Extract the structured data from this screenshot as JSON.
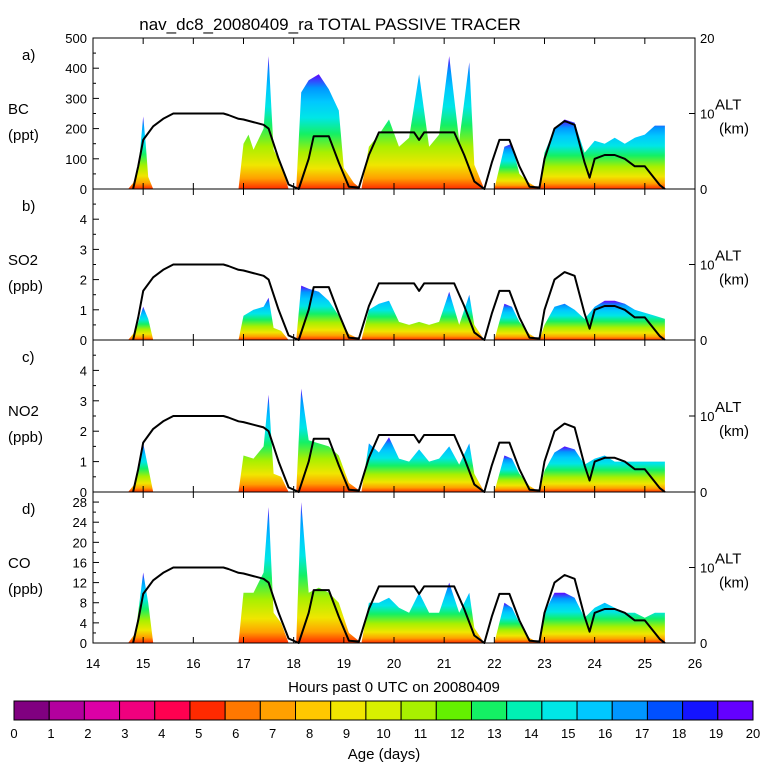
{
  "chart_data": {
    "type": "area",
    "title": "nav_dc8_20080409_ra TOTAL PASSIVE TRACER",
    "xlabel": "Hours past 0 UTC on 20080409",
    "xlim": [
      14,
      26
    ],
    "xticks": [
      "14",
      "15",
      "16",
      "17",
      "18",
      "19",
      "20",
      "21",
      "22",
      "23",
      "24",
      "25",
      "26"
    ],
    "altitude_axis": {
      "label": "ALT",
      "unit": "(km)",
      "range": [
        0,
        20
      ],
      "ticks": [
        "0",
        "10",
        "20"
      ]
    },
    "altitude_profile": [
      [
        14.8,
        0
      ],
      [
        14.9,
        3
      ],
      [
        15.0,
        6.5
      ],
      [
        15.2,
        8.3
      ],
      [
        15.4,
        9.3
      ],
      [
        15.6,
        10.0
      ],
      [
        16.6,
        10.0
      ],
      [
        16.7,
        9.8
      ],
      [
        16.9,
        9.3
      ],
      [
        17.0,
        9.2
      ],
      [
        17.4,
        8.5
      ],
      [
        17.5,
        8.0
      ],
      [
        17.7,
        4.0
      ],
      [
        17.9,
        0.6
      ],
      [
        18.1,
        0
      ],
      [
        18.3,
        4.0
      ],
      [
        18.4,
        7.0
      ],
      [
        18.7,
        7.0
      ],
      [
        18.9,
        3.5
      ],
      [
        19.1,
        0.3
      ],
      [
        19.3,
        0.2
      ],
      [
        19.5,
        4.5
      ],
      [
        19.7,
        7.5
      ],
      [
        20.4,
        7.5
      ],
      [
        20.5,
        6.5
      ],
      [
        20.6,
        7.5
      ],
      [
        21.2,
        7.5
      ],
      [
        21.4,
        4.5
      ],
      [
        21.6,
        1.0
      ],
      [
        21.8,
        0
      ],
      [
        21.95,
        3.5
      ],
      [
        22.1,
        6.5
      ],
      [
        22.3,
        6.5
      ],
      [
        22.5,
        3.0
      ],
      [
        22.7,
        0.3
      ],
      [
        22.9,
        0.2
      ],
      [
        23.0,
        4.0
      ],
      [
        23.2,
        8.0
      ],
      [
        23.4,
        9.0
      ],
      [
        23.6,
        8.5
      ],
      [
        23.8,
        3.5
      ],
      [
        23.9,
        1.5
      ],
      [
        24.0,
        4.0
      ],
      [
        24.2,
        4.5
      ],
      [
        24.4,
        4.5
      ],
      [
        24.6,
        4.0
      ],
      [
        24.8,
        3.0
      ],
      [
        25.0,
        3.0
      ],
      [
        25.3,
        0.5
      ],
      [
        25.4,
        0
      ]
    ],
    "panels": [
      {
        "letter": "a)",
        "species": "BC",
        "unit": "(ppt)",
        "ylim": [
          0,
          500
        ],
        "yticks": [
          "0",
          "100",
          "200",
          "300",
          "400",
          "500"
        ],
        "values": [
          [
            14.7,
            0
          ],
          [
            14.8,
            20
          ],
          [
            14.9,
            60
          ],
          [
            15.0,
            240
          ],
          [
            15.05,
            150
          ],
          [
            15.1,
            40
          ],
          [
            15.2,
            0
          ],
          [
            16.9,
            0
          ],
          [
            17.0,
            150
          ],
          [
            17.1,
            180
          ],
          [
            17.2,
            130
          ],
          [
            17.4,
            200
          ],
          [
            17.5,
            440
          ],
          [
            17.6,
            130
          ],
          [
            17.75,
            80
          ],
          [
            17.9,
            0
          ],
          [
            18.05,
            0
          ],
          [
            18.15,
            320
          ],
          [
            18.3,
            360
          ],
          [
            18.5,
            380
          ],
          [
            18.7,
            330
          ],
          [
            18.9,
            260
          ],
          [
            19.0,
            70
          ],
          [
            19.2,
            20
          ],
          [
            19.35,
            0
          ],
          [
            19.5,
            140
          ],
          [
            19.7,
            180
          ],
          [
            19.9,
            230
          ],
          [
            20.1,
            140
          ],
          [
            20.3,
            170
          ],
          [
            20.5,
            380
          ],
          [
            20.7,
            140
          ],
          [
            20.9,
            180
          ],
          [
            21.1,
            440
          ],
          [
            21.3,
            160
          ],
          [
            21.5,
            420
          ],
          [
            21.6,
            80
          ],
          [
            21.8,
            0
          ],
          [
            22.0,
            0
          ],
          [
            22.2,
            140
          ],
          [
            22.35,
            150
          ],
          [
            22.5,
            50
          ],
          [
            22.7,
            20
          ],
          [
            22.9,
            0
          ],
          [
            23.0,
            120
          ],
          [
            23.2,
            200
          ],
          [
            23.4,
            230
          ],
          [
            23.6,
            220
          ],
          [
            23.8,
            120
          ],
          [
            24.0,
            160
          ],
          [
            24.2,
            150
          ],
          [
            24.4,
            170
          ],
          [
            24.6,
            150
          ],
          [
            24.8,
            170
          ],
          [
            25.0,
            180
          ],
          [
            25.2,
            210
          ],
          [
            25.4,
            210
          ]
        ]
      },
      {
        "letter": "b)",
        "species": "SO2",
        "unit": "(ppb)",
        "ylim": [
          0,
          5
        ],
        "yticks": [
          "0",
          "1",
          "2",
          "3",
          "4"
        ],
        "values": [
          [
            14.7,
            0
          ],
          [
            14.85,
            0.3
          ],
          [
            15.0,
            1.1
          ],
          [
            15.1,
            0.7
          ],
          [
            15.2,
            0
          ],
          [
            16.9,
            0
          ],
          [
            17.0,
            0.8
          ],
          [
            17.2,
            1.0
          ],
          [
            17.4,
            1.1
          ],
          [
            17.5,
            1.4
          ],
          [
            17.6,
            0.4
          ],
          [
            17.75,
            0.3
          ],
          [
            17.9,
            0
          ],
          [
            18.05,
            0
          ],
          [
            18.15,
            1.8
          ],
          [
            18.3,
            1.7
          ],
          [
            18.5,
            1.6
          ],
          [
            18.7,
            1.3
          ],
          [
            18.9,
            0.8
          ],
          [
            19.1,
            0.2
          ],
          [
            19.35,
            0
          ],
          [
            19.5,
            1.0
          ],
          [
            19.7,
            1.2
          ],
          [
            19.9,
            1.3
          ],
          [
            20.1,
            0.6
          ],
          [
            20.3,
            0.5
          ],
          [
            20.5,
            0.6
          ],
          [
            20.7,
            0.5
          ],
          [
            20.9,
            0.6
          ],
          [
            21.1,
            1.6
          ],
          [
            21.3,
            0.5
          ],
          [
            21.5,
            1.5
          ],
          [
            21.6,
            0.5
          ],
          [
            21.8,
            0
          ],
          [
            22.0,
            0
          ],
          [
            22.2,
            1.2
          ],
          [
            22.35,
            1.1
          ],
          [
            22.5,
            0.6
          ],
          [
            22.7,
            0.2
          ],
          [
            22.9,
            0
          ],
          [
            23.0,
            0.5
          ],
          [
            23.2,
            1.1
          ],
          [
            23.4,
            1.2
          ],
          [
            23.6,
            1.0
          ],
          [
            23.8,
            0.7
          ],
          [
            24.0,
            1.1
          ],
          [
            24.2,
            1.3
          ],
          [
            24.4,
            1.3
          ],
          [
            24.6,
            1.2
          ],
          [
            24.8,
            1.0
          ],
          [
            25.0,
            0.9
          ],
          [
            25.2,
            0.8
          ],
          [
            25.4,
            0.7
          ]
        ]
      },
      {
        "letter": "c)",
        "species": "NO2",
        "unit": "(ppb)",
        "ylim": [
          0,
          5
        ],
        "yticks": [
          "0",
          "1",
          "2",
          "3",
          "4"
        ],
        "values": [
          [
            14.7,
            0
          ],
          [
            14.85,
            0.3
          ],
          [
            15.0,
            1.6
          ],
          [
            15.1,
            0.8
          ],
          [
            15.2,
            0
          ],
          [
            16.9,
            0
          ],
          [
            17.0,
            1.2
          ],
          [
            17.2,
            1.1
          ],
          [
            17.4,
            1.5
          ],
          [
            17.5,
            3.2
          ],
          [
            17.6,
            0.6
          ],
          [
            17.75,
            0.5
          ],
          [
            17.9,
            0
          ],
          [
            18.05,
            0
          ],
          [
            18.15,
            3.4
          ],
          [
            18.3,
            1.7
          ],
          [
            18.5,
            1.6
          ],
          [
            18.7,
            1.5
          ],
          [
            18.9,
            1.2
          ],
          [
            19.1,
            0.3
          ],
          [
            19.35,
            0
          ],
          [
            19.5,
            1.6
          ],
          [
            19.7,
            1.3
          ],
          [
            19.9,
            1.8
          ],
          [
            20.1,
            1.1
          ],
          [
            20.3,
            1.0
          ],
          [
            20.5,
            1.4
          ],
          [
            20.7,
            1.0
          ],
          [
            20.9,
            1.1
          ],
          [
            21.1,
            1.5
          ],
          [
            21.3,
            0.9
          ],
          [
            21.5,
            1.6
          ],
          [
            21.6,
            0.6
          ],
          [
            21.8,
            0
          ],
          [
            22.0,
            0
          ],
          [
            22.2,
            1.2
          ],
          [
            22.35,
            1.1
          ],
          [
            22.5,
            0.6
          ],
          [
            22.7,
            0.2
          ],
          [
            22.9,
            0
          ],
          [
            23.0,
            0.7
          ],
          [
            23.2,
            1.3
          ],
          [
            23.4,
            1.5
          ],
          [
            23.6,
            1.4
          ],
          [
            23.8,
            0.9
          ],
          [
            24.0,
            1.1
          ],
          [
            24.2,
            1.2
          ],
          [
            24.4,
            1.0
          ],
          [
            24.6,
            1.0
          ],
          [
            24.8,
            1.0
          ],
          [
            25.0,
            1.0
          ],
          [
            25.2,
            1.0
          ],
          [
            25.4,
            1.0
          ]
        ]
      },
      {
        "letter": "d)",
        "species": "CO",
        "unit": "(ppb)",
        "ylim": [
          0,
          30
        ],
        "yticks": [
          "0",
          "4",
          "8",
          "12",
          "16",
          "20",
          "24",
          "28"
        ],
        "values": [
          [
            14.7,
            0
          ],
          [
            14.85,
            2
          ],
          [
            15.0,
            14
          ],
          [
            15.1,
            8
          ],
          [
            15.2,
            0
          ],
          [
            16.9,
            0
          ],
          [
            17.0,
            10
          ],
          [
            17.2,
            10
          ],
          [
            17.4,
            14
          ],
          [
            17.5,
            27
          ],
          [
            17.6,
            6
          ],
          [
            17.75,
            4
          ],
          [
            17.9,
            0
          ],
          [
            18.05,
            0
          ],
          [
            18.15,
            28
          ],
          [
            18.3,
            10
          ],
          [
            18.5,
            11
          ],
          [
            18.7,
            10
          ],
          [
            18.9,
            8
          ],
          [
            19.1,
            2
          ],
          [
            19.35,
            0
          ],
          [
            19.5,
            8
          ],
          [
            19.7,
            8
          ],
          [
            19.9,
            9
          ],
          [
            20.1,
            7
          ],
          [
            20.3,
            6
          ],
          [
            20.5,
            10
          ],
          [
            20.7,
            6
          ],
          [
            20.9,
            6
          ],
          [
            21.1,
            12
          ],
          [
            21.3,
            6
          ],
          [
            21.5,
            10
          ],
          [
            21.6,
            3
          ],
          [
            21.8,
            0
          ],
          [
            22.0,
            0
          ],
          [
            22.2,
            8
          ],
          [
            22.35,
            7
          ],
          [
            22.5,
            4
          ],
          [
            22.7,
            1
          ],
          [
            22.9,
            0
          ],
          [
            23.0,
            6
          ],
          [
            23.2,
            10
          ],
          [
            23.4,
            10
          ],
          [
            23.6,
            9
          ],
          [
            23.8,
            5
          ],
          [
            24.0,
            7
          ],
          [
            24.2,
            8
          ],
          [
            24.4,
            7
          ],
          [
            24.6,
            6
          ],
          [
            24.8,
            6
          ],
          [
            25.0,
            5
          ],
          [
            25.2,
            6
          ],
          [
            25.4,
            6
          ]
        ]
      }
    ],
    "colorbar": {
      "label": "Age (days)",
      "ticks": [
        "0",
        "1",
        "2",
        "3",
        "4",
        "5",
        "6",
        "7",
        "8",
        "9",
        "10",
        "11",
        "12",
        "13",
        "14",
        "15",
        "16",
        "17",
        "18",
        "19",
        "20"
      ],
      "colors": [
        "#800080",
        "#b3009e",
        "#dc00a6",
        "#f0007e",
        "#ff0050",
        "#ff2a00",
        "#ff7800",
        "#ffa000",
        "#ffc800",
        "#f0e600",
        "#d8f000",
        "#a8f000",
        "#64f000",
        "#14f064",
        "#00f0b4",
        "#00e6e6",
        "#00c8ff",
        "#0096ff",
        "#0050ff",
        "#1414ff",
        "#6400ff"
      ]
    }
  }
}
